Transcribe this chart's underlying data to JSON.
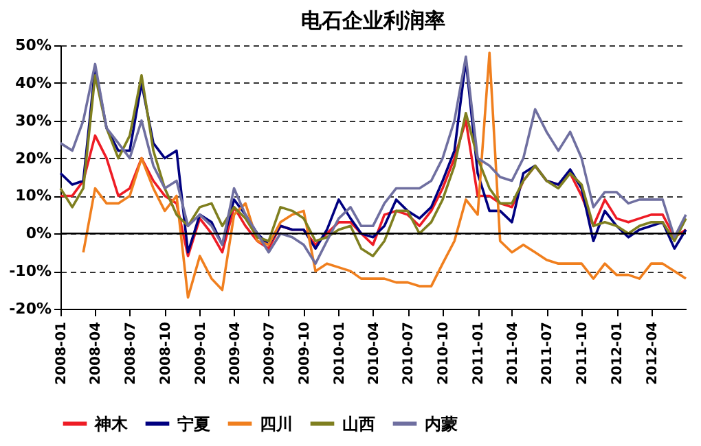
{
  "chart_data": {
    "type": "line",
    "title": "电石企业利润率",
    "x": [
      "2008-01",
      "2008-02",
      "2008-03",
      "2008-04",
      "2008-05",
      "2008-06",
      "2008-07",
      "2008-08",
      "2008-09",
      "2008-10",
      "2008-11",
      "2008-12",
      "2009-01",
      "2009-02",
      "2009-03",
      "2009-04",
      "2009-05",
      "2009-06",
      "2009-07",
      "2009-08",
      "2009-09",
      "2009-10",
      "2009-11",
      "2009-12",
      "2010-01",
      "2010-02",
      "2010-03",
      "2010-04",
      "2010-05",
      "2010-06",
      "2010-07",
      "2010-08",
      "2010-09",
      "2010-10",
      "2010-11",
      "2010-12",
      "2011-01",
      "2011-02",
      "2011-03",
      "2011-04",
      "2011-05",
      "2011-06",
      "2011-07",
      "2011-08",
      "2011-09",
      "2011-10",
      "2011-11",
      "2011-12",
      "2012-01",
      "2012-02",
      "2012-03",
      "2012-04",
      "2012-05",
      "2012-06",
      "2012-07"
    ],
    "series": [
      {
        "name": "神木",
        "color": "#ee1c25",
        "values": [
          10,
          10,
          14,
          26,
          20,
          10,
          12,
          20,
          14,
          10,
          8,
          -6,
          4,
          0,
          -5,
          7,
          2,
          -2,
          -4,
          2,
          1,
          1,
          -3,
          0,
          3,
          3,
          0,
          -3,
          5,
          6,
          5,
          2,
          6,
          12,
          20,
          30,
          10,
          10,
          8,
          7,
          14,
          18,
          14,
          13,
          16,
          10,
          2,
          9,
          4,
          3,
          4,
          5,
          5,
          -1,
          1
        ]
      },
      {
        "name": "宁夏",
        "color": "#000080",
        "values": [
          16,
          13,
          14,
          44,
          28,
          22,
          22,
          40,
          24,
          20,
          22,
          -5,
          5,
          3,
          -3,
          9,
          5,
          0,
          -3,
          2,
          1,
          1,
          -4,
          1,
          9,
          4,
          0,
          -1,
          2,
          9,
          6,
          4,
          7,
          14,
          22,
          46,
          16,
          6,
          6,
          3,
          16,
          18,
          14,
          13,
          17,
          12,
          -2,
          6,
          2,
          -1,
          1,
          2,
          3,
          -4,
          1
        ]
      },
      {
        "name": "四川",
        "color": "#f07f1e",
        "values": [
          null,
          null,
          -5,
          12,
          8,
          8,
          10,
          20,
          12,
          6,
          10,
          -17,
          -6,
          -12,
          -15,
          5,
          8,
          -2,
          -3,
          3,
          5,
          6,
          -10,
          -8,
          -9,
          -10,
          -12,
          -12,
          -12,
          -13,
          -13,
          -14,
          -14,
          -8,
          -2,
          9,
          5,
          48,
          -2,
          -5,
          -3,
          -5,
          -7,
          -8,
          -8,
          -8,
          -12,
          -8,
          -11,
          -11,
          -12,
          -8,
          -8,
          -10,
          -12
        ]
      },
      {
        "name": "山西",
        "color": "#7f7f1f",
        "values": [
          12,
          7,
          12,
          42,
          28,
          20,
          26,
          42,
          22,
          12,
          5,
          2,
          7,
          8,
          2,
          7,
          4,
          -1,
          -2,
          7,
          6,
          4,
          -2,
          -1,
          1,
          2,
          -4,
          -6,
          -2,
          6,
          6,
          0,
          3,
          9,
          18,
          32,
          20,
          12,
          8,
          8,
          14,
          18,
          14,
          12,
          16,
          13,
          2,
          3,
          2,
          0,
          2,
          3,
          3,
          -2,
          4
        ]
      },
      {
        "name": "内蒙",
        "color": "#6f6fa0",
        "values": [
          24,
          22,
          30,
          45,
          28,
          24,
          20,
          30,
          18,
          12,
          14,
          2,
          5,
          2,
          -3,
          12,
          5,
          0,
          -5,
          0,
          -1,
          -3,
          -8,
          -2,
          4,
          7,
          2,
          2,
          8,
          12,
          12,
          12,
          14,
          20,
          30,
          47,
          20,
          18,
          15,
          14,
          20,
          33,
          27,
          22,
          27,
          20,
          7,
          11,
          11,
          8,
          9,
          9,
          9,
          -1,
          5
        ]
      }
    ],
    "xlim": [
      "2008-01",
      "2012-07"
    ],
    "xticks": [
      "2008-01",
      "2008-04",
      "2008-07",
      "2008-10",
      "2009-01",
      "2009-04",
      "2009-07",
      "2009-10",
      "2010-01",
      "2010-04",
      "2010-07",
      "2010-10",
      "2011-01",
      "2011-04",
      "2011-07",
      "2011-10",
      "2012-01",
      "2012-04"
    ],
    "ylim": [
      -20,
      50
    ],
    "yticks": [
      {
        "value": -20,
        "label": "-20%"
      },
      {
        "value": -10,
        "label": "-10%"
      },
      {
        "value": 0,
        "label": "0%"
      },
      {
        "value": 10,
        "label": "10%"
      },
      {
        "value": 20,
        "label": "20%"
      },
      {
        "value": 30,
        "label": "30%"
      },
      {
        "value": 40,
        "label": "40%"
      },
      {
        "value": 50,
        "label": "50%"
      }
    ],
    "ref_lines": [
      {
        "axis": "y",
        "value": 0,
        "color": "#000000"
      }
    ],
    "grid": "y",
    "line_style": "solid",
    "marker": "none",
    "legend": "bottom"
  }
}
